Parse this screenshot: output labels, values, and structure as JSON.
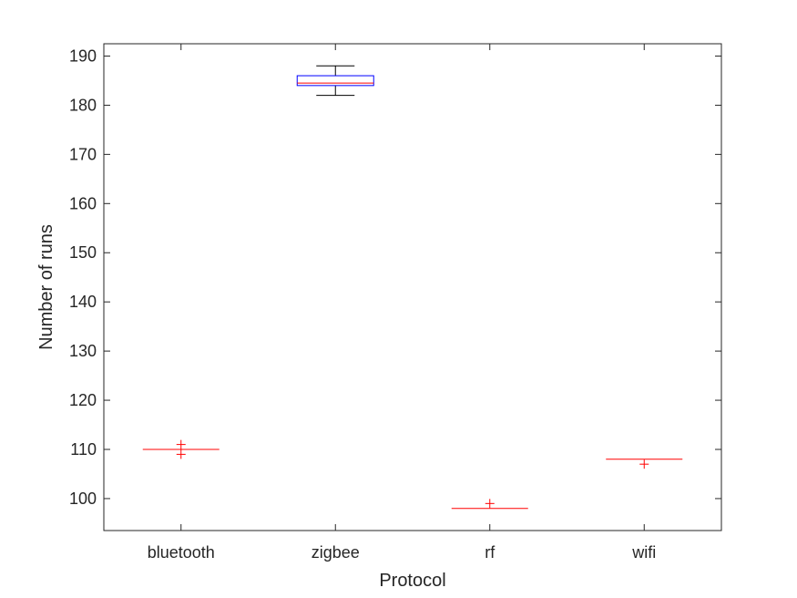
{
  "chart_data": {
    "type": "box",
    "xlabel": "Protocol",
    "ylabel": "Number of runs",
    "ylim": [
      93.5,
      192.5
    ],
    "yticks": [
      100,
      110,
      120,
      130,
      140,
      150,
      160,
      170,
      180,
      190
    ],
    "grid": false,
    "legend": "none",
    "categories": [
      "bluetooth",
      "zigbee",
      "rf",
      "wifi"
    ],
    "boxes": [
      {
        "category": "bluetooth",
        "q1": 110,
        "median": 110,
        "q3": 110,
        "whisker_low": 110,
        "whisker_high": 110,
        "outliers": [
          111,
          109
        ]
      },
      {
        "category": "zigbee",
        "q1": 184,
        "median": 184.5,
        "q3": 186,
        "whisker_low": 182,
        "whisker_high": 188,
        "outliers": []
      },
      {
        "category": "rf",
        "q1": 98,
        "median": 98,
        "q3": 98,
        "whisker_low": 98,
        "whisker_high": 98,
        "outliers": [
          99
        ]
      },
      {
        "category": "wifi",
        "q1": 108,
        "median": 108,
        "q3": 108,
        "whisker_low": 108,
        "whisker_high": 108,
        "outliers": [
          107
        ]
      }
    ],
    "colors": {
      "box": "#0000ff",
      "median": "#ff0000",
      "whisker": "#000000",
      "outlier": "#ff0000",
      "axes": "#262626"
    }
  }
}
